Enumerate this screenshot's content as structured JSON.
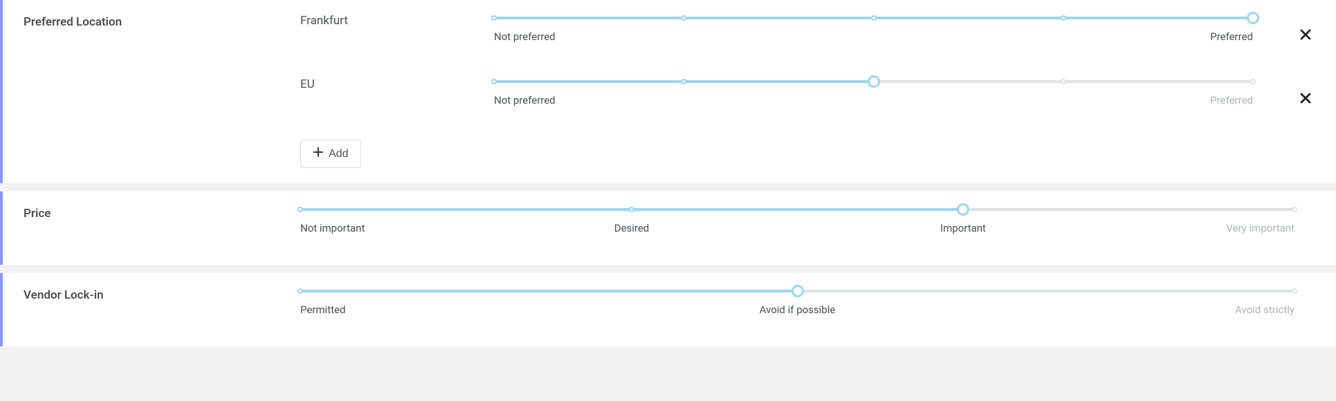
{
  "colors": {
    "page_bg": "#f2f2f2",
    "panel_bg": "#ffffff",
    "panel_accent": "#8898f7",
    "text": "#4a4e55",
    "text_muted": "#aeb3ba",
    "slider_active": "#9bd6f0",
    "slider_inactive": "#dfe2e6",
    "tick_inactive": "#dfe2e6",
    "add_border": "#d7dbe0",
    "close_icon": "#222222"
  },
  "sections": {
    "location": {
      "title": "Preferred Location",
      "add_label": "Add",
      "items": [
        {
          "label": "Frankfurt",
          "ticks": 5,
          "value_index": 4,
          "end_labels": {
            "left": "Not preferred",
            "right": "Preferred"
          }
        },
        {
          "label": "EU",
          "ticks": 5,
          "value_index": 2,
          "end_labels": {
            "left": "Not preferred",
            "right": "Preferred"
          }
        }
      ]
    },
    "price": {
      "title": "Price",
      "ticks": 4,
      "value_index": 2,
      "tick_labels": [
        "Not important",
        "Desired",
        "Important",
        "Very important"
      ]
    },
    "vendor": {
      "title": "Vendor Lock-in",
      "ticks": 3,
      "value_index": 1,
      "tick_labels": [
        "Permitted",
        "Avoid if possible",
        "Avoid strictly"
      ]
    }
  }
}
